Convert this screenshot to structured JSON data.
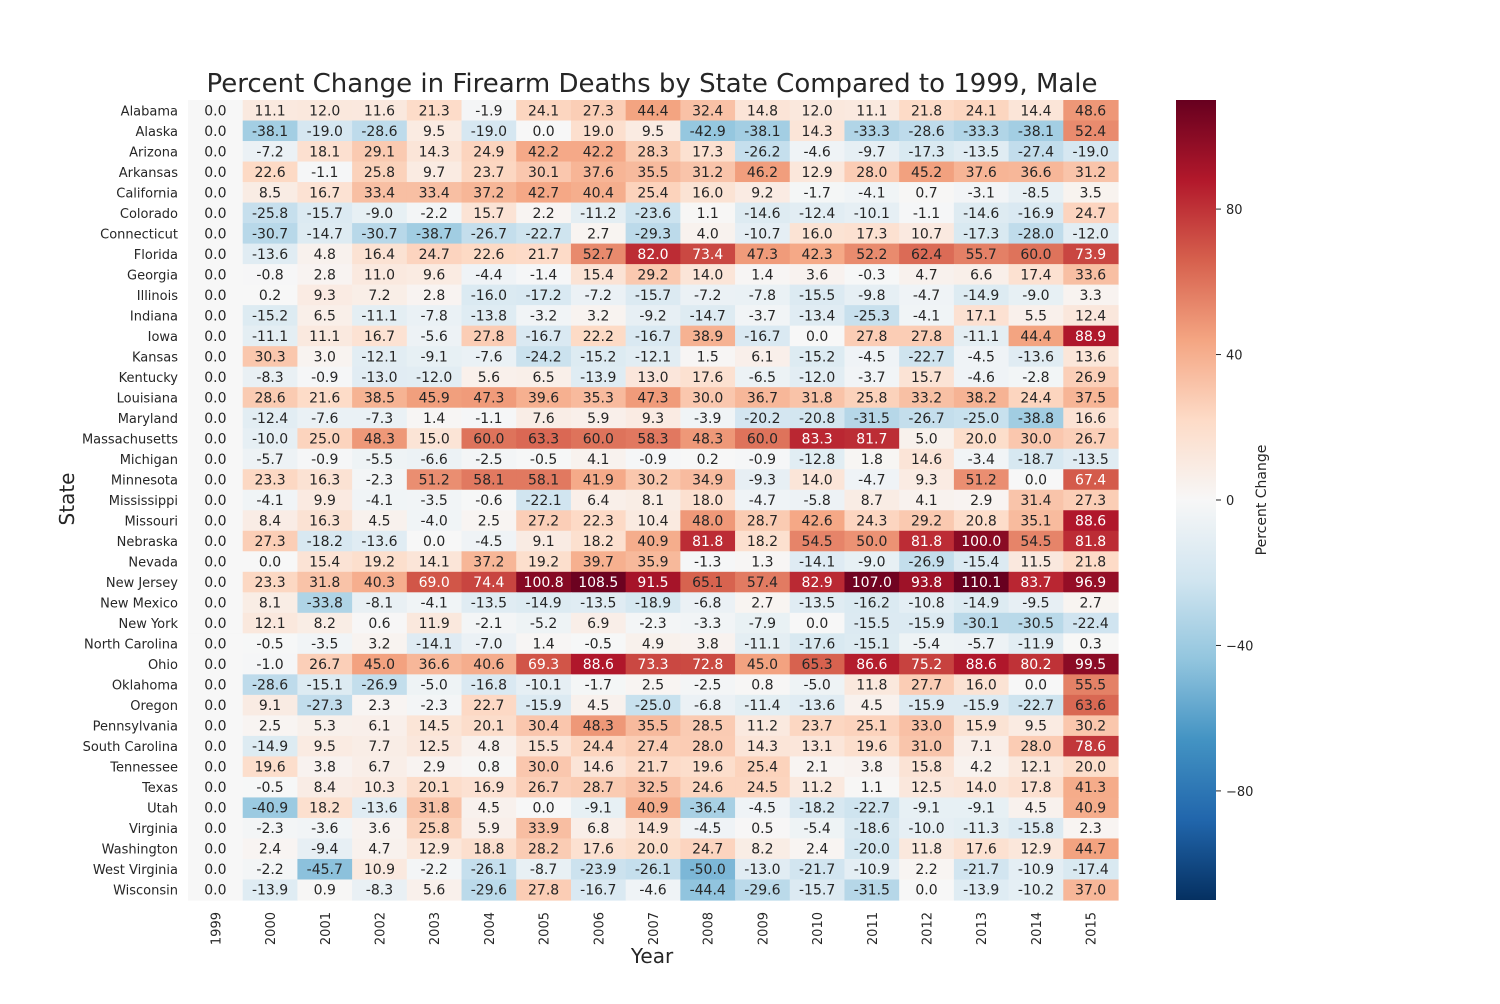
{
  "chart_data": {
    "type": "heatmap",
    "title": "Percent Change in Firearm Deaths by State Compared to 1999, Male",
    "xlabel": "Year",
    "ylabel": "State",
    "colorbar": {
      "label": "Percent Change",
      "range": [
        -110,
        110
      ],
      "ticks": [
        80,
        40,
        0,
        -40,
        -80
      ],
      "tick_labels": [
        "80",
        "40",
        "0",
        "−40",
        "−80"
      ],
      "colors": [
        "#053061",
        "#2166ac",
        "#4393c3",
        "#92c5de",
        "#d1e5f0",
        "#f7f7f7",
        "#fddbc7",
        "#f4a582",
        "#d6604d",
        "#b2182b",
        "#67001f"
      ]
    },
    "x": [
      "1999",
      "2000",
      "2001",
      "2002",
      "2003",
      "2004",
      "2005",
      "2006",
      "2007",
      "2008",
      "2009",
      "2010",
      "2011",
      "2012",
      "2013",
      "2014",
      "2015"
    ],
    "y": [
      "Alabama",
      "Alaska",
      "Arizona",
      "Arkansas",
      "California",
      "Colorado",
      "Connecticut",
      "Florida",
      "Georgia",
      "Illinois",
      "Indiana",
      "Iowa",
      "Kansas",
      "Kentucky",
      "Louisiana",
      "Maryland",
      "Massachusetts",
      "Michigan",
      "Minnesota",
      "Mississippi",
      "Missouri",
      "Nebraska",
      "Nevada",
      "New Jersey",
      "New Mexico",
      "New York",
      "North Carolina",
      "Ohio",
      "Oklahoma",
      "Oregon",
      "Pennsylvania",
      "South Carolina",
      "Tennessee",
      "Texas",
      "Utah",
      "Virginia",
      "Washington",
      "West Virginia",
      "Wisconsin"
    ],
    "values": [
      [
        0.0,
        11.1,
        12.0,
        11.6,
        21.3,
        -1.9,
        24.1,
        27.3,
        44.4,
        32.4,
        14.8,
        12.0,
        11.1,
        21.8,
        24.1,
        14.4,
        48.6
      ],
      [
        0.0,
        -38.1,
        -19.0,
        -28.6,
        9.5,
        -19.0,
        0.0,
        19.0,
        9.5,
        -42.9,
        -38.1,
        14.3,
        -33.3,
        -28.6,
        -33.3,
        -38.1,
        52.4
      ],
      [
        0.0,
        -7.2,
        18.1,
        29.1,
        14.3,
        24.9,
        42.2,
        42.2,
        28.3,
        17.3,
        -26.2,
        -4.6,
        -9.7,
        -17.3,
        -13.5,
        -27.4,
        -19.0
      ],
      [
        0.0,
        22.6,
        -1.1,
        25.8,
        9.7,
        23.7,
        30.1,
        37.6,
        35.5,
        31.2,
        46.2,
        12.9,
        28.0,
        45.2,
        37.6,
        36.6,
        31.2
      ],
      [
        0.0,
        8.5,
        16.7,
        33.4,
        33.4,
        37.2,
        42.7,
        40.4,
        25.4,
        16.0,
        9.2,
        -1.7,
        -4.1,
        0.7,
        -3.1,
        -8.5,
        3.5
      ],
      [
        0.0,
        -25.8,
        -15.7,
        -9.0,
        -2.2,
        15.7,
        2.2,
        -11.2,
        -23.6,
        1.1,
        -14.6,
        -12.4,
        -10.1,
        -1.1,
        -14.6,
        -16.9,
        24.7
      ],
      [
        0.0,
        -30.7,
        -14.7,
        -30.7,
        -38.7,
        -26.7,
        -22.7,
        2.7,
        -29.3,
        4.0,
        -10.7,
        16.0,
        17.3,
        10.7,
        -17.3,
        -28.0,
        -12.0
      ],
      [
        0.0,
        -13.6,
        4.8,
        16.4,
        24.7,
        22.6,
        21.7,
        52.7,
        82.0,
        73.4,
        47.3,
        42.3,
        52.2,
        62.4,
        55.7,
        60.0,
        73.9
      ],
      [
        0.0,
        -0.8,
        2.8,
        11.0,
        9.6,
        -4.4,
        -1.4,
        15.4,
        29.2,
        14.0,
        1.4,
        3.6,
        -0.3,
        4.7,
        6.6,
        17.4,
        33.6
      ],
      [
        0.0,
        0.2,
        9.3,
        7.2,
        2.8,
        -16.0,
        -17.2,
        -7.2,
        -15.7,
        -7.2,
        -7.8,
        -15.5,
        -9.8,
        -4.7,
        -14.9,
        -9.0,
        3.3
      ],
      [
        0.0,
        -15.2,
        6.5,
        -11.1,
        -7.8,
        -13.8,
        -3.2,
        3.2,
        -9.2,
        -14.7,
        -3.7,
        -13.4,
        -25.3,
        -4.1,
        17.1,
        5.5,
        12.4
      ],
      [
        0.0,
        -11.1,
        11.1,
        16.7,
        -5.6,
        27.8,
        -16.7,
        22.2,
        -16.7,
        38.9,
        -16.7,
        0.0,
        27.8,
        27.8,
        -11.1,
        44.4,
        88.9
      ],
      [
        0.0,
        30.3,
        3.0,
        -12.1,
        -9.1,
        -7.6,
        -24.2,
        -15.2,
        -12.1,
        1.5,
        6.1,
        -15.2,
        -4.5,
        -22.7,
        -4.5,
        -13.6,
        13.6
      ],
      [
        0.0,
        -8.3,
        -0.9,
        -13.0,
        -12.0,
        5.6,
        6.5,
        -13.9,
        13.0,
        17.6,
        -6.5,
        -12.0,
        -3.7,
        15.7,
        -4.6,
        -2.8,
        26.9
      ],
      [
        0.0,
        28.6,
        21.6,
        38.5,
        45.9,
        47.3,
        39.6,
        35.3,
        47.3,
        30.0,
        36.7,
        31.8,
        25.8,
        33.2,
        38.2,
        24.4,
        37.5
      ],
      [
        0.0,
        -12.4,
        -7.6,
        -7.3,
        1.4,
        -1.1,
        7.6,
        5.9,
        9.3,
        -3.9,
        -20.2,
        -20.8,
        -31.5,
        -26.7,
        -25.0,
        -38.8,
        16.6
      ],
      [
        0.0,
        -10.0,
        25.0,
        48.3,
        15.0,
        60.0,
        63.3,
        60.0,
        58.3,
        48.3,
        60.0,
        83.3,
        81.7,
        5.0,
        20.0,
        30.0,
        26.7
      ],
      [
        0.0,
        -5.7,
        -0.9,
        -5.5,
        -6.6,
        -2.5,
        -0.5,
        4.1,
        -0.9,
        0.2,
        -0.9,
        -12.8,
        1.8,
        14.6,
        -3.4,
        -18.7,
        -13.5
      ],
      [
        0.0,
        23.3,
        16.3,
        -2.3,
        51.2,
        58.1,
        58.1,
        41.9,
        30.2,
        34.9,
        -9.3,
        14.0,
        -4.7,
        9.3,
        51.2,
        0.0,
        67.4
      ],
      [
        0.0,
        -4.1,
        9.9,
        -4.1,
        -3.5,
        -0.6,
        -22.1,
        6.4,
        8.1,
        18.0,
        -4.7,
        -5.8,
        8.7,
        4.1,
        2.9,
        31.4,
        27.3
      ],
      [
        0.0,
        8.4,
        16.3,
        4.5,
        -4.0,
        2.5,
        27.2,
        22.3,
        10.4,
        48.0,
        28.7,
        42.6,
        24.3,
        29.2,
        20.8,
        35.1,
        88.6
      ],
      [
        0.0,
        27.3,
        -18.2,
        -13.6,
        0.0,
        -4.5,
        9.1,
        18.2,
        40.9,
        81.8,
        18.2,
        54.5,
        50.0,
        81.8,
        100.0,
        54.5,
        81.8
      ],
      [
        0.0,
        0.0,
        15.4,
        19.2,
        14.1,
        37.2,
        19.2,
        39.7,
        35.9,
        -1.3,
        1.3,
        -14.1,
        -9.0,
        -26.9,
        -15.4,
        11.5,
        21.8
      ],
      [
        0.0,
        23.3,
        31.8,
        40.3,
        69.0,
        74.4,
        100.8,
        108.5,
        91.5,
        65.1,
        57.4,
        82.9,
        107.0,
        93.8,
        110.1,
        83.7,
        96.9
      ],
      [
        0.0,
        8.1,
        -33.8,
        -8.1,
        -4.1,
        -13.5,
        -14.9,
        -13.5,
        -18.9,
        -6.8,
        2.7,
        -13.5,
        -16.2,
        -10.8,
        -14.9,
        -9.5,
        2.7
      ],
      [
        0.0,
        12.1,
        8.2,
        0.6,
        11.9,
        -2.1,
        -5.2,
        6.9,
        -2.3,
        -3.3,
        -7.9,
        0.0,
        -15.5,
        -15.9,
        -30.1,
        -30.5,
        -22.4
      ],
      [
        0.0,
        -0.5,
        -3.5,
        3.2,
        -14.1,
        -7.0,
        1.4,
        -0.5,
        4.9,
        3.8,
        -11.1,
        -17.6,
        -15.1,
        -5.4,
        -5.7,
        -11.9,
        0.3
      ],
      [
        0.0,
        -1.0,
        26.7,
        45.0,
        36.6,
        40.6,
        69.3,
        88.6,
        73.3,
        72.8,
        45.0,
        65.3,
        86.6,
        75.2,
        88.6,
        80.2,
        99.5
      ],
      [
        0.0,
        -28.6,
        -15.1,
        -26.9,
        -5.0,
        -16.8,
        -10.1,
        -1.7,
        2.5,
        -2.5,
        0.8,
        -5.0,
        11.8,
        27.7,
        16.0,
        0.0,
        55.5
      ],
      [
        0.0,
        9.1,
        -27.3,
        2.3,
        -2.3,
        22.7,
        -15.9,
        4.5,
        -25.0,
        -6.8,
        -11.4,
        -13.6,
        4.5,
        -15.9,
        -15.9,
        -22.7,
        63.6
      ],
      [
        0.0,
        2.5,
        5.3,
        6.1,
        14.5,
        20.1,
        30.4,
        48.3,
        35.5,
        28.5,
        11.2,
        23.7,
        25.1,
        33.0,
        15.9,
        9.5,
        30.2
      ],
      [
        0.0,
        -14.9,
        9.5,
        7.7,
        12.5,
        4.8,
        15.5,
        24.4,
        27.4,
        28.0,
        14.3,
        13.1,
        19.6,
        31.0,
        7.1,
        28.0,
        78.6
      ],
      [
        0.0,
        19.6,
        3.8,
        6.7,
        2.9,
        0.8,
        30.0,
        14.6,
        21.7,
        19.6,
        25.4,
        2.1,
        3.8,
        15.8,
        4.2,
        12.1,
        20.0
      ],
      [
        0.0,
        -0.5,
        8.4,
        10.3,
        20.1,
        16.9,
        26.7,
        28.7,
        32.5,
        24.6,
        24.5,
        11.2,
        1.1,
        12.5,
        14.0,
        17.8,
        41.3
      ],
      [
        0.0,
        -40.9,
        18.2,
        -13.6,
        31.8,
        4.5,
        0.0,
        -9.1,
        40.9,
        -36.4,
        -4.5,
        -18.2,
        -22.7,
        -9.1,
        -9.1,
        4.5,
        40.9
      ],
      [
        0.0,
        -2.3,
        -3.6,
        3.6,
        25.8,
        5.9,
        33.9,
        6.8,
        14.9,
        -4.5,
        0.5,
        -5.4,
        -18.6,
        -10.0,
        -11.3,
        -15.8,
        2.3
      ],
      [
        0.0,
        2.4,
        -9.4,
        4.7,
        12.9,
        18.8,
        28.2,
        17.6,
        20.0,
        24.7,
        8.2,
        2.4,
        -20.0,
        11.8,
        17.6,
        12.9,
        44.7
      ],
      [
        0.0,
        -2.2,
        -45.7,
        10.9,
        -2.2,
        -26.1,
        -8.7,
        -23.9,
        -26.1,
        -50.0,
        -13.0,
        -21.7,
        -10.9,
        2.2,
        -21.7,
        -10.9,
        -17.4
      ],
      [
        0.0,
        -13.9,
        0.9,
        -8.3,
        5.6,
        -29.6,
        27.8,
        -16.7,
        -4.6,
        -44.4,
        -29.6,
        -15.7,
        -31.5,
        0.0,
        -13.9,
        -10.2,
        37.0
      ]
    ]
  }
}
